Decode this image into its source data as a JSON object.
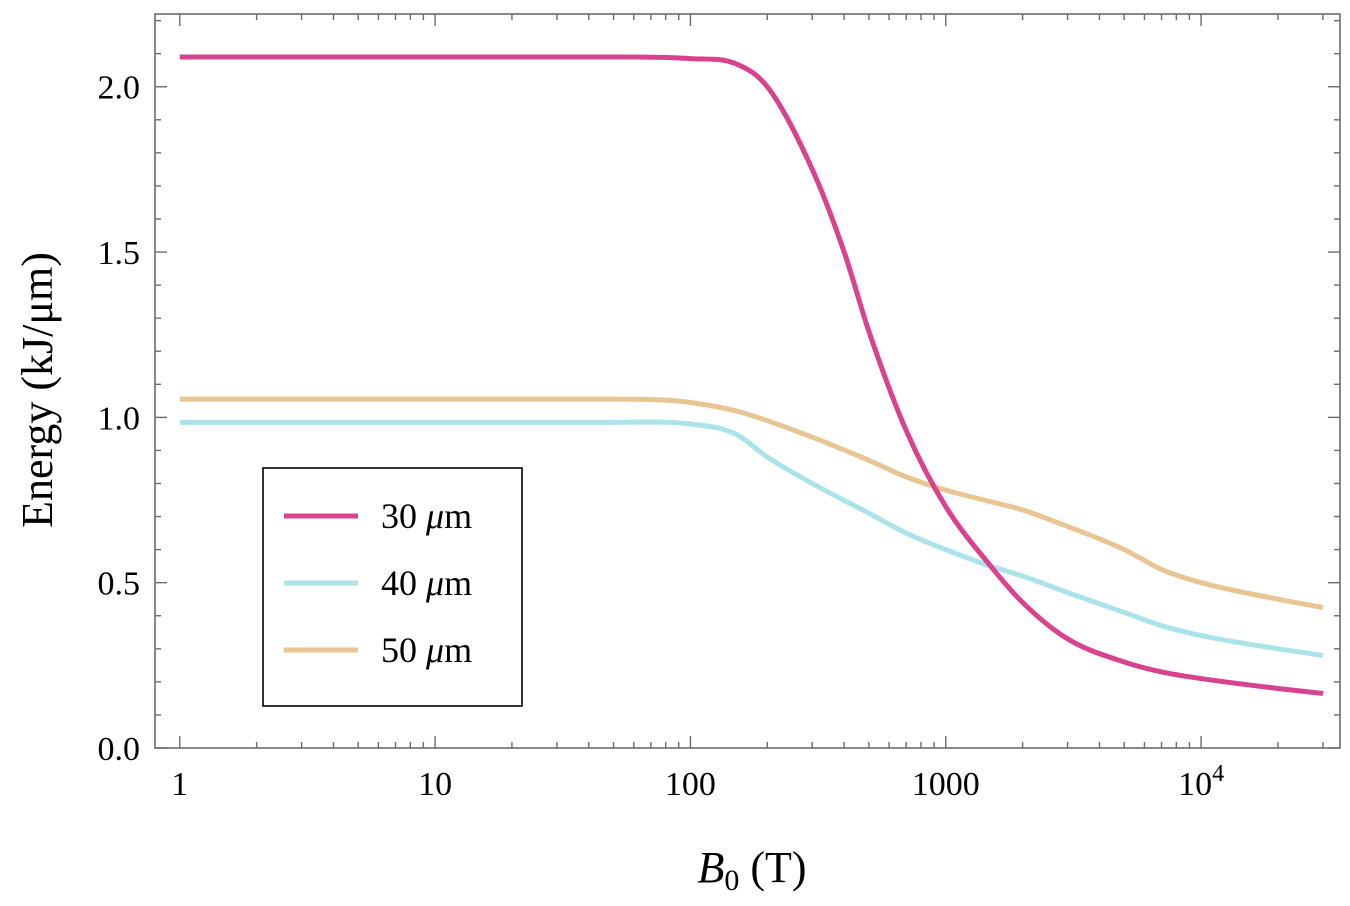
{
  "chart_data": {
    "type": "line",
    "x_scale": "log",
    "xlim": [
      0.8,
      35000
    ],
    "ylim": [
      0,
      2.22
    ],
    "xlabel_main": "B",
    "xlabel_sub": "0",
    "xlabel_unit": " (T)",
    "ylabel": "Energy (kJ/μm)",
    "x_ticks": [
      {
        "value": 1,
        "label": "1"
      },
      {
        "value": 10,
        "label": "10"
      },
      {
        "value": 100,
        "label": "100"
      },
      {
        "value": 1000,
        "label": "1000"
      },
      {
        "value": 10000,
        "label": "10",
        "sup": "4"
      }
    ],
    "y_ticks": [
      {
        "value": 0.0,
        "label": "0.0"
      },
      {
        "value": 0.5,
        "label": "0.5"
      },
      {
        "value": 1.0,
        "label": "1.0"
      },
      {
        "value": 1.5,
        "label": "1.5"
      },
      {
        "value": 2.0,
        "label": "2.0"
      }
    ],
    "legend_position": "lower-left",
    "series": [
      {
        "name": "30 μm",
        "color": "#d9428e",
        "points": [
          [
            1,
            2.09
          ],
          [
            10,
            2.09
          ],
          [
            50,
            2.09
          ],
          [
            100,
            2.085
          ],
          [
            150,
            2.07
          ],
          [
            200,
            2.0
          ],
          [
            300,
            1.75
          ],
          [
            400,
            1.5
          ],
          [
            500,
            1.26
          ],
          [
            700,
            0.96
          ],
          [
            1000,
            0.73
          ],
          [
            1500,
            0.55
          ],
          [
            2000,
            0.44
          ],
          [
            3000,
            0.33
          ],
          [
            5000,
            0.26
          ],
          [
            7000,
            0.23
          ],
          [
            10000,
            0.21
          ],
          [
            20000,
            0.18
          ],
          [
            30000,
            0.165
          ]
        ]
      },
      {
        "name": "40 μm",
        "color": "#abe3ea",
        "points": [
          [
            1,
            0.985
          ],
          [
            10,
            0.985
          ],
          [
            50,
            0.985
          ],
          [
            100,
            0.98
          ],
          [
            150,
            0.95
          ],
          [
            200,
            0.88
          ],
          [
            300,
            0.8
          ],
          [
            500,
            0.71
          ],
          [
            700,
            0.65
          ],
          [
            1000,
            0.6
          ],
          [
            1500,
            0.55
          ],
          [
            2000,
            0.52
          ],
          [
            3000,
            0.47
          ],
          [
            5000,
            0.41
          ],
          [
            7000,
            0.37
          ],
          [
            10000,
            0.34
          ],
          [
            20000,
            0.3
          ],
          [
            30000,
            0.28
          ]
        ]
      },
      {
        "name": "50 μm",
        "color": "#e8c592",
        "points": [
          [
            1,
            1.055
          ],
          [
            10,
            1.055
          ],
          [
            50,
            1.055
          ],
          [
            80,
            1.052
          ],
          [
            100,
            1.045
          ],
          [
            150,
            1.02
          ],
          [
            200,
            0.99
          ],
          [
            300,
            0.94
          ],
          [
            500,
            0.87
          ],
          [
            700,
            0.82
          ],
          [
            1000,
            0.78
          ],
          [
            1500,
            0.745
          ],
          [
            2000,
            0.72
          ],
          [
            3000,
            0.67
          ],
          [
            5000,
            0.6
          ],
          [
            7000,
            0.54
          ],
          [
            10000,
            0.5
          ],
          [
            20000,
            0.45
          ],
          [
            30000,
            0.425
          ]
        ]
      }
    ]
  }
}
